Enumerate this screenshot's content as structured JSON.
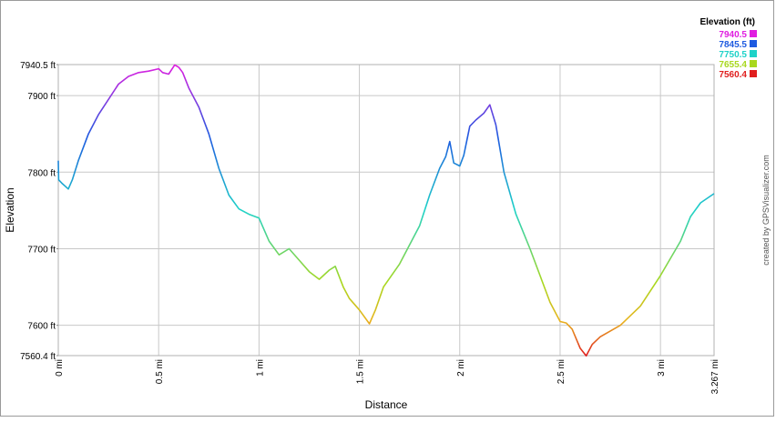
{
  "chart_data": {
    "type": "line",
    "xlabel": "Distance",
    "ylabel": "Elevation",
    "credit": "created by GPSVisualizer.com",
    "xlim": [
      0,
      3.267
    ],
    "ylim": [
      7560.4,
      7940.5
    ],
    "x_ticks": [
      {
        "value": 0,
        "label": "0 mi"
      },
      {
        "value": 0.5,
        "label": "0.5 mi"
      },
      {
        "value": 1,
        "label": "1 mi"
      },
      {
        "value": 1.5,
        "label": "1.5 mi"
      },
      {
        "value": 2,
        "label": "2 mi"
      },
      {
        "value": 2.5,
        "label": "2.5 mi"
      },
      {
        "value": 3,
        "label": "3 mi"
      },
      {
        "value": 3.267,
        "label": "3.267 mi"
      }
    ],
    "y_ticks": [
      {
        "value": 7940.5,
        "label": "7940.5 ft"
      },
      {
        "value": 7900,
        "label": "7900 ft"
      },
      {
        "value": 7800,
        "label": "7800 ft"
      },
      {
        "value": 7700,
        "label": "7700 ft"
      },
      {
        "value": 7600,
        "label": "7600 ft"
      },
      {
        "value": 7560.4,
        "label": "7560.4 ft"
      }
    ],
    "legend": {
      "title": "Elevation (ft)",
      "placement": "top-right",
      "entries": [
        {
          "label": "7940.5",
          "color": "#e01ee0"
        },
        {
          "label": "7845.5",
          "color": "#1e5ae0"
        },
        {
          "label": "7750.5",
          "color": "#1ed2c8"
        },
        {
          "label": "7655.4",
          "color": "#a8d81e"
        },
        {
          "label": "7560.4",
          "color": "#e01e1e"
        }
      ]
    },
    "grid": true,
    "series": [
      {
        "x": [
          0,
          0.002,
          0.02,
          0.05,
          0.07,
          0.1,
          0.15,
          0.2,
          0.25,
          0.3,
          0.35,
          0.4,
          0.45,
          0.5,
          0.52,
          0.55,
          0.58,
          0.6,
          0.62,
          0.65,
          0.7,
          0.75,
          0.8,
          0.85,
          0.9,
          0.95,
          1.0,
          1.05,
          1.1,
          1.15,
          1.2,
          1.25,
          1.3,
          1.35,
          1.38,
          1.42,
          1.45,
          1.5,
          1.55,
          1.58,
          1.62,
          1.7,
          1.8,
          1.85,
          1.9,
          1.93,
          1.95,
          1.97,
          2.0,
          2.02,
          2.05,
          2.08,
          2.12,
          2.15,
          2.18,
          2.22,
          2.28,
          2.35,
          2.4,
          2.45,
          2.5,
          2.53,
          2.56,
          2.6,
          2.63,
          2.66,
          2.7,
          2.8,
          2.9,
          3.0,
          3.1,
          3.15,
          3.2,
          3.267
        ],
        "y": [
          7815,
          7790,
          7785,
          7778,
          7790,
          7815,
          7850,
          7875,
          7895,
          7915,
          7925,
          7930,
          7932,
          7935,
          7930,
          7928,
          7940,
          7937,
          7930,
          7910,
          7885,
          7850,
          7805,
          7770,
          7752,
          7745,
          7740,
          7710,
          7692,
          7700,
          7685,
          7670,
          7660,
          7672,
          7677,
          7650,
          7635,
          7620,
          7602,
          7620,
          7650,
          7680,
          7730,
          7770,
          7805,
          7820,
          7840,
          7812,
          7808,
          7822,
          7860,
          7868,
          7877,
          7888,
          7862,
          7800,
          7745,
          7700,
          7665,
          7630,
          7605,
          7603,
          7595,
          7570,
          7560,
          7575,
          7585,
          7600,
          7625,
          7665,
          7710,
          7742,
          7760,
          7772
        ]
      }
    ]
  }
}
